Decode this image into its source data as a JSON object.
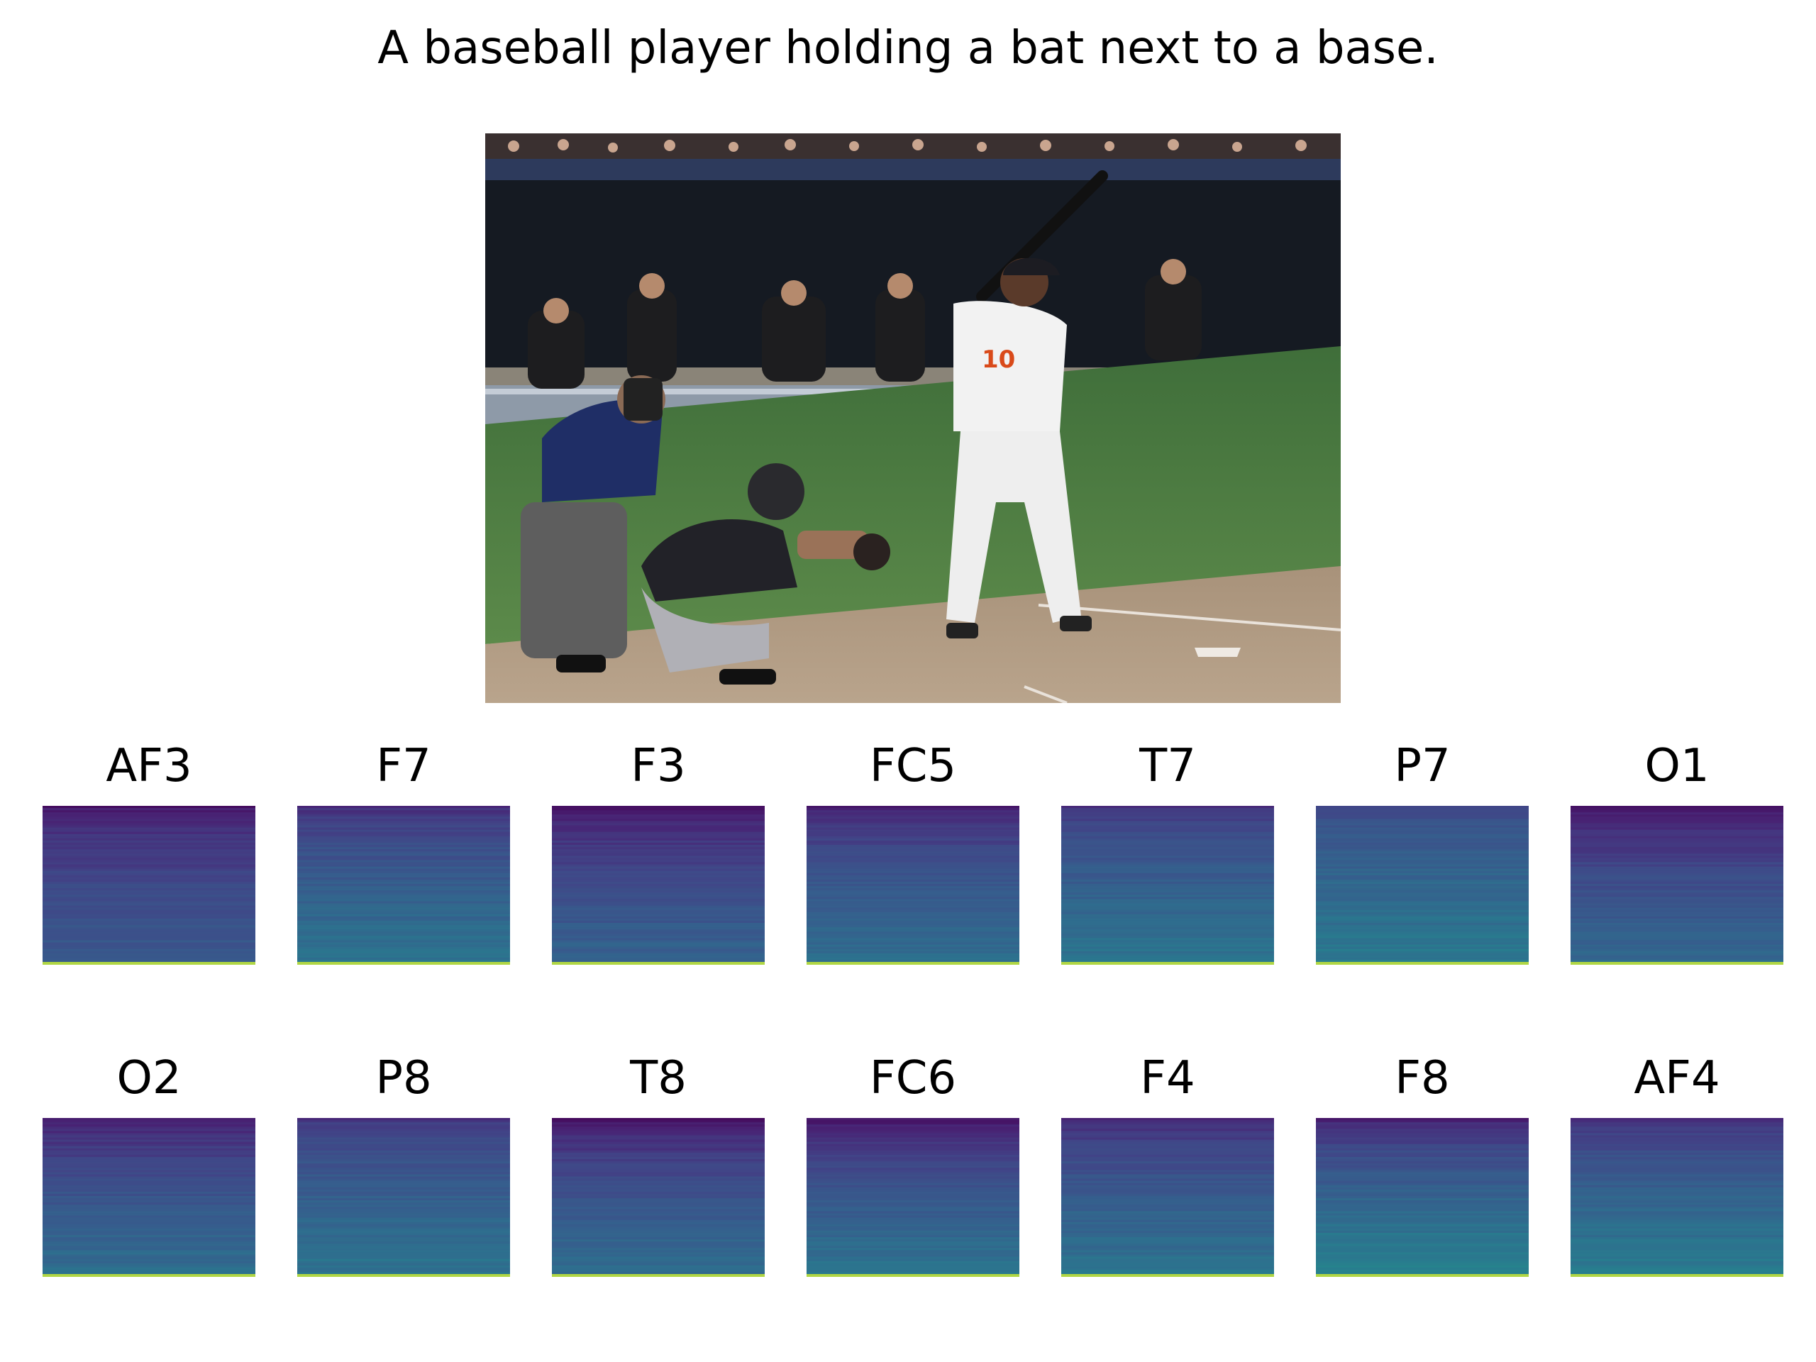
{
  "figure": {
    "caption": "A baseball player holding a bat next to a base.",
    "image_subject": "baseball-batter-catcher-umpire-photo"
  },
  "chart_data": {
    "type": "heatmap",
    "colormap": "viridis",
    "panels": [
      {
        "title": "AF3",
        "top": 0.08,
        "bottom": 0.36
      },
      {
        "title": "F7",
        "top": 0.15,
        "bottom": 0.48
      },
      {
        "title": "F3",
        "top": 0.05,
        "bottom": 0.4
      },
      {
        "title": "FC5",
        "top": 0.1,
        "bottom": 0.45
      },
      {
        "title": "T7",
        "top": 0.18,
        "bottom": 0.48
      },
      {
        "title": "P7",
        "top": 0.25,
        "bottom": 0.5
      },
      {
        "title": "O1",
        "top": 0.05,
        "bottom": 0.42
      },
      {
        "title": "O2",
        "top": 0.08,
        "bottom": 0.45
      },
      {
        "title": "P8",
        "top": 0.18,
        "bottom": 0.48
      },
      {
        "title": "T8",
        "top": 0.05,
        "bottom": 0.45
      },
      {
        "title": "FC6",
        "top": 0.06,
        "bottom": 0.48
      },
      {
        "title": "F4",
        "top": 0.12,
        "bottom": 0.48
      },
      {
        "title": "F8",
        "top": 0.1,
        "bottom": 0.55
      },
      {
        "title": "AF4",
        "top": 0.15,
        "bottom": 0.52
      }
    ],
    "bottom_row_value": 0.95
  }
}
